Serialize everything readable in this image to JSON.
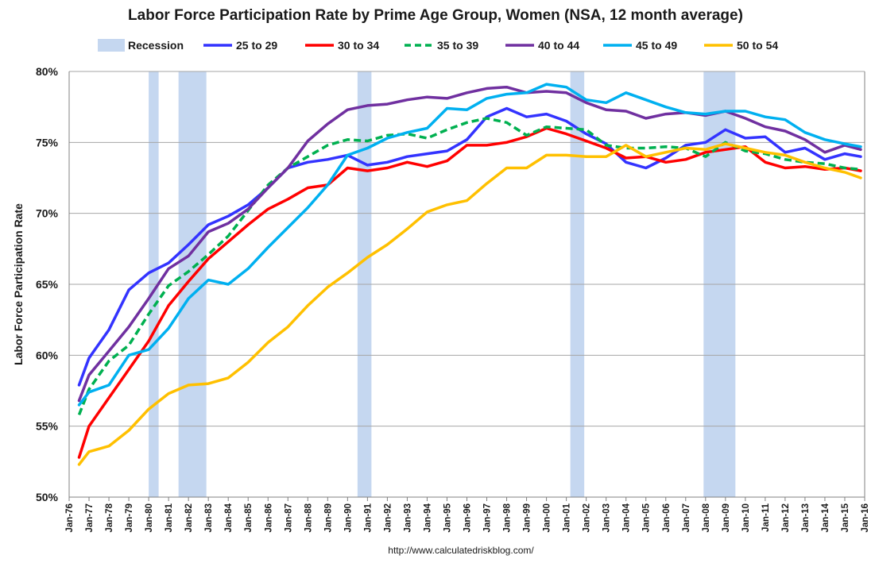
{
  "chart_data": {
    "type": "line",
    "title": "Labor Force Participation Rate by Prime Age Group, Women (NSA, 12 month average)",
    "ylabel": "Labor Force Participation Rate",
    "xlabel": "",
    "source": "http://www.calculatedriskblog.com/",
    "ylim": [
      50,
      80
    ],
    "xlim": [
      1976.0,
      2016.0
    ],
    "yticks": [
      50,
      55,
      60,
      65,
      70,
      75,
      80
    ],
    "ytick_labels": [
      "50%",
      "55%",
      "60%",
      "65%",
      "70%",
      "75%",
      "80%"
    ],
    "xtick_labels": [
      "Jan-76",
      "Jan-77",
      "Jan-78",
      "Jan-79",
      "Jan-80",
      "Jan-81",
      "Jan-82",
      "Jan-83",
      "Jan-84",
      "Jan-85",
      "Jan-86",
      "Jan-87",
      "Jan-88",
      "Jan-89",
      "Jan-90",
      "Jan-91",
      "Jan-92",
      "Jan-93",
      "Jan-94",
      "Jan-95",
      "Jan-96",
      "Jan-97",
      "Jan-98",
      "Jan-99",
      "Jan-00",
      "Jan-01",
      "Jan-02",
      "Jan-03",
      "Jan-04",
      "Jan-05",
      "Jan-06",
      "Jan-07",
      "Jan-08",
      "Jan-09",
      "Jan-10",
      "Jan-11",
      "Jan-12",
      "Jan-13",
      "Jan-14",
      "Jan-15",
      "Jan-16"
    ],
    "grid": true,
    "legend_position": "top",
    "recession_label": "Recession",
    "recessions": [
      [
        1980.0,
        1980.5
      ],
      [
        1981.5,
        1982.9
      ],
      [
        1990.5,
        1991.2
      ],
      [
        2001.2,
        2001.9
      ],
      [
        2007.9,
        2009.5
      ]
    ],
    "colors": {
      "recession": "#c5d7f0",
      "grid": "#a6a6a6",
      "axis": "#808080"
    },
    "series": [
      {
        "name": "25 to 29",
        "color": "#3333ff",
        "dashed": false,
        "x": [
          1976.5,
          1977,
          1978,
          1979,
          1980,
          1981,
          1982,
          1983,
          1984,
          1985,
          1986,
          1987,
          1988,
          1989,
          1990,
          1991,
          1992,
          1993,
          1994,
          1995,
          1996,
          1997,
          1998,
          1999,
          2000,
          2001,
          2002,
          2003,
          2004,
          2005,
          2006,
          2007,
          2008,
          2009,
          2010,
          2011,
          2012,
          2013,
          2014,
          2015,
          2015.8
        ],
        "values": [
          57.9,
          59.8,
          61.8,
          64.6,
          65.8,
          66.5,
          67.8,
          69.2,
          69.8,
          70.6,
          71.8,
          73.2,
          73.6,
          73.8,
          74.1,
          73.4,
          73.6,
          74.0,
          74.2,
          74.4,
          75.2,
          76.8,
          77.4,
          76.8,
          77.0,
          76.5,
          75.6,
          74.9,
          73.6,
          73.2,
          73.9,
          74.8,
          75.0,
          75.9,
          75.3,
          75.4,
          74.3,
          74.6,
          73.8,
          74.2,
          74.0
        ]
      },
      {
        "name": "30 to 34",
        "color": "#ff0000",
        "dashed": false,
        "x": [
          1976.5,
          1977,
          1978,
          1979,
          1980,
          1981,
          1982,
          1983,
          1984,
          1985,
          1986,
          1987,
          1988,
          1989,
          1990,
          1991,
          1992,
          1993,
          1994,
          1995,
          1996,
          1997,
          1998,
          1999,
          2000,
          2001,
          2002,
          2003,
          2004,
          2005,
          2006,
          2007,
          2008,
          2009,
          2010,
          2011,
          2012,
          2013,
          2014,
          2015,
          2015.8
        ],
        "values": [
          52.8,
          55.0,
          57.0,
          59.0,
          61.0,
          63.5,
          65.2,
          66.8,
          68.0,
          69.2,
          70.3,
          71.0,
          71.8,
          72.0,
          73.2,
          73.0,
          73.2,
          73.6,
          73.3,
          73.7,
          74.8,
          74.8,
          75.0,
          75.4,
          76.0,
          75.6,
          75.1,
          74.6,
          73.9,
          74.0,
          73.6,
          73.8,
          74.3,
          74.5,
          74.7,
          73.6,
          73.2,
          73.3,
          73.1,
          73.2,
          73.0
        ]
      },
      {
        "name": "35 to 39",
        "color": "#00b050",
        "dashed": true,
        "x": [
          1976.5,
          1977,
          1978,
          1979,
          1980,
          1981,
          1982,
          1983,
          1984,
          1985,
          1986,
          1987,
          1988,
          1989,
          1990,
          1991,
          1992,
          1993,
          1994,
          1995,
          1996,
          1997,
          1998,
          1999,
          2000,
          2001,
          2002,
          2003,
          2004,
          2005,
          2006,
          2007,
          2008,
          2009,
          2010,
          2011,
          2012,
          2013,
          2014,
          2015,
          2015.8
        ],
        "values": [
          55.8,
          57.6,
          59.6,
          60.7,
          62.9,
          64.9,
          65.9,
          67.1,
          68.4,
          70.2,
          72.0,
          73.2,
          74.0,
          74.8,
          75.2,
          75.1,
          75.5,
          75.6,
          75.3,
          75.9,
          76.4,
          76.7,
          76.4,
          75.5,
          76.1,
          76.0,
          75.9,
          74.8,
          74.6,
          74.6,
          74.7,
          74.6,
          74.0,
          75.0,
          74.4,
          74.2,
          73.8,
          73.6,
          73.5,
          73.2,
          73.1
        ]
      },
      {
        "name": "40 to 44",
        "color": "#7030a0",
        "dashed": false,
        "x": [
          1976.5,
          1977,
          1978,
          1979,
          1980,
          1981,
          1982,
          1983,
          1984,
          1985,
          1986,
          1987,
          1988,
          1989,
          1990,
          1991,
          1992,
          1993,
          1994,
          1995,
          1996,
          1997,
          1998,
          1999,
          2000,
          2001,
          2002,
          2003,
          2004,
          2005,
          2006,
          2007,
          2008,
          2009,
          2010,
          2011,
          2012,
          2013,
          2014,
          2015,
          2015.8
        ],
        "values": [
          56.8,
          58.6,
          60.3,
          62.0,
          64.0,
          66.1,
          67.0,
          68.7,
          69.3,
          70.3,
          71.8,
          73.2,
          75.1,
          76.3,
          77.3,
          77.6,
          77.7,
          78.0,
          78.2,
          78.1,
          78.5,
          78.8,
          78.9,
          78.5,
          78.6,
          78.5,
          77.8,
          77.3,
          77.2,
          76.7,
          77.0,
          77.1,
          76.9,
          77.2,
          76.7,
          76.1,
          75.8,
          75.2,
          74.3,
          74.8,
          74.5
        ]
      },
      {
        "name": "45 to 49",
        "color": "#00b0f0",
        "dashed": false,
        "x": [
          1976.5,
          1977,
          1978,
          1979,
          1980,
          1981,
          1982,
          1983,
          1984,
          1985,
          1986,
          1987,
          1988,
          1989,
          1990,
          1991,
          1992,
          1993,
          1994,
          1995,
          1996,
          1997,
          1998,
          1999,
          2000,
          2001,
          2002,
          2003,
          2004,
          2005,
          2006,
          2007,
          2008,
          2009,
          2010,
          2011,
          2012,
          2013,
          2014,
          2015,
          2015.8
        ],
        "values": [
          56.5,
          57.4,
          57.9,
          60.0,
          60.4,
          61.9,
          64.0,
          65.3,
          65.0,
          66.1,
          67.6,
          69.0,
          70.4,
          72.0,
          74.1,
          74.6,
          75.3,
          75.7,
          76.0,
          77.4,
          77.3,
          78.1,
          78.4,
          78.5,
          79.1,
          78.9,
          78.0,
          77.8,
          78.5,
          78.0,
          77.5,
          77.1,
          77.0,
          77.2,
          77.2,
          76.8,
          76.6,
          75.7,
          75.2,
          74.9,
          74.7
        ]
      },
      {
        "name": "50 to 54",
        "color": "#ffc000",
        "dashed": false,
        "x": [
          1976.5,
          1977,
          1978,
          1979,
          1980,
          1981,
          1982,
          1983,
          1984,
          1985,
          1986,
          1987,
          1988,
          1989,
          1990,
          1991,
          1992,
          1993,
          1994,
          1995,
          1996,
          1997,
          1998,
          1999,
          2000,
          2001,
          2002,
          2003,
          2004,
          2005,
          2006,
          2007,
          2008,
          2009,
          2010,
          2011,
          2012,
          2013,
          2014,
          2015,
          2015.8
        ],
        "values": [
          52.3,
          53.2,
          53.6,
          54.7,
          56.2,
          57.3,
          57.9,
          58.0,
          58.4,
          59.5,
          60.9,
          62.0,
          63.5,
          64.8,
          65.8,
          66.9,
          67.8,
          68.9,
          70.1,
          70.6,
          70.9,
          72.1,
          73.2,
          73.2,
          74.1,
          74.1,
          74.0,
          74.0,
          74.8,
          74.0,
          74.3,
          74.6,
          74.5,
          74.9,
          74.6,
          74.3,
          74.1,
          73.6,
          73.2,
          72.9,
          72.5
        ]
      }
    ]
  }
}
